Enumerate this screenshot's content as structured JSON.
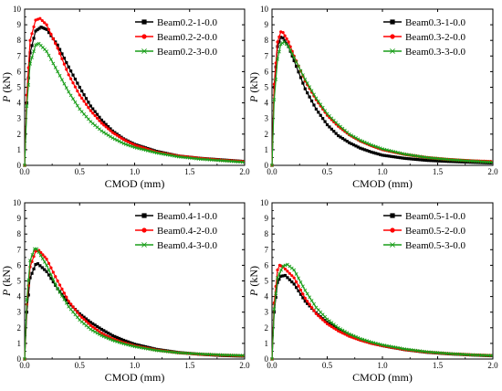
{
  "colors": {
    "black": "#000000",
    "red": "#ff0000",
    "green": "#1a9e1a"
  },
  "chart_data": [
    {
      "type": "line",
      "xlabel": "CMOD (mm)",
      "ylabel": "P",
      "ylabel_unit": "(kN)",
      "xlim": [
        0,
        2.0
      ],
      "ylim": [
        0,
        10
      ],
      "xticks": [
        "0.0",
        "0.5",
        "1.0",
        "1.5",
        "2.0"
      ],
      "yticks": [
        "0",
        "1",
        "2",
        "3",
        "4",
        "5",
        "6",
        "7",
        "8",
        "9",
        "10"
      ],
      "grid": false,
      "legend_position": "top-right",
      "series": [
        {
          "name": "Beam0.2-1-0.0",
          "color": "#000000",
          "marker": "square",
          "x": [
            0,
            0.02,
            0.05,
            0.1,
            0.15,
            0.2,
            0.3,
            0.4,
            0.5,
            0.6,
            0.7,
            0.8,
            0.9,
            1.0,
            1.2,
            1.4,
            1.6,
            1.8,
            2.0
          ],
          "y": [
            0,
            4.0,
            7.2,
            8.6,
            8.85,
            8.7,
            7.7,
            6.3,
            5.0,
            3.8,
            2.9,
            2.2,
            1.7,
            1.35,
            0.9,
            0.6,
            0.45,
            0.35,
            0.25
          ]
        },
        {
          "name": "Beam0.2-2-0.0",
          "color": "#ff0000",
          "marker": "circle",
          "x": [
            0,
            0.02,
            0.05,
            0.1,
            0.14,
            0.2,
            0.3,
            0.4,
            0.5,
            0.6,
            0.7,
            0.8,
            0.9,
            1.0,
            1.2,
            1.4,
            1.6,
            1.8,
            2.0
          ],
          "y": [
            0,
            4.5,
            8.0,
            9.3,
            9.4,
            9.0,
            7.5,
            5.8,
            4.5,
            3.5,
            2.7,
            2.1,
            1.65,
            1.3,
            0.85,
            0.6,
            0.45,
            0.33,
            0.25
          ]
        },
        {
          "name": "Beam0.2-3-0.0",
          "color": "#1a9e1a",
          "marker": "x",
          "x": [
            0,
            0.02,
            0.05,
            0.1,
            0.13,
            0.2,
            0.3,
            0.4,
            0.5,
            0.6,
            0.7,
            0.8,
            0.9,
            1.0,
            1.2,
            1.4,
            1.6,
            1.8,
            2.0
          ],
          "y": [
            0,
            3.8,
            6.5,
            7.7,
            7.8,
            7.3,
            6.0,
            4.7,
            3.6,
            2.8,
            2.2,
            1.75,
            1.4,
            1.15,
            0.8,
            0.55,
            0.4,
            0.3,
            0.2
          ]
        }
      ]
    },
    {
      "type": "line",
      "xlabel": "CMOD (mm)",
      "ylabel": "P",
      "ylabel_unit": "(kN)",
      "xlim": [
        0,
        2.0
      ],
      "ylim": [
        0,
        10
      ],
      "xticks": [
        "0.0",
        "0.5",
        "1.0",
        "1.5",
        "2.0"
      ],
      "yticks": [
        "0",
        "1",
        "2",
        "3",
        "4",
        "5",
        "6",
        "7",
        "8",
        "9",
        "10"
      ],
      "grid": false,
      "legend_position": "top-right",
      "series": [
        {
          "name": "Beam0.3-1-0.0",
          "color": "#000000",
          "marker": "square",
          "x": [
            0,
            0.02,
            0.05,
            0.08,
            0.1,
            0.15,
            0.2,
            0.3,
            0.4,
            0.5,
            0.6,
            0.7,
            0.8,
            0.9,
            1.0,
            1.2,
            1.4,
            1.6,
            1.8,
            2.0
          ],
          "y": [
            0,
            5.0,
            7.6,
            8.2,
            8.15,
            7.6,
            6.7,
            4.9,
            3.6,
            2.6,
            1.9,
            1.45,
            1.1,
            0.85,
            0.65,
            0.45,
            0.32,
            0.25,
            0.2,
            0.15
          ]
        },
        {
          "name": "Beam0.3-2-0.0",
          "color": "#ff0000",
          "marker": "circle",
          "x": [
            0,
            0.02,
            0.05,
            0.08,
            0.1,
            0.15,
            0.2,
            0.3,
            0.4,
            0.5,
            0.6,
            0.7,
            0.8,
            0.9,
            1.0,
            1.2,
            1.4,
            1.6,
            1.8,
            2.0
          ],
          "y": [
            0,
            5.2,
            7.9,
            8.55,
            8.5,
            7.9,
            7.0,
            5.4,
            4.2,
            3.2,
            2.5,
            1.95,
            1.55,
            1.25,
            1.0,
            0.7,
            0.5,
            0.38,
            0.3,
            0.25
          ]
        },
        {
          "name": "Beam0.3-3-0.0",
          "color": "#1a9e1a",
          "marker": "x",
          "x": [
            0,
            0.02,
            0.05,
            0.08,
            0.11,
            0.15,
            0.2,
            0.3,
            0.4,
            0.5,
            0.6,
            0.7,
            0.8,
            0.9,
            1.0,
            1.2,
            1.4,
            1.6,
            1.8,
            2.0
          ],
          "y": [
            0,
            4.2,
            6.8,
            7.75,
            7.9,
            7.6,
            6.9,
            5.5,
            4.3,
            3.3,
            2.6,
            2.0,
            1.6,
            1.3,
            1.05,
            0.72,
            0.5,
            0.37,
            0.28,
            0.2
          ]
        }
      ]
    },
    {
      "type": "line",
      "xlabel": "CMOD (mm)",
      "ylabel": "P",
      "ylabel_unit": "(kN)",
      "xlim": [
        0,
        2.0
      ],
      "ylim": [
        0,
        10
      ],
      "xticks": [
        "0.0",
        "0.5",
        "1.0",
        "1.5",
        "2.0"
      ],
      "yticks": [
        "0",
        "1",
        "2",
        "3",
        "4",
        "5",
        "6",
        "7",
        "8",
        "9",
        "10"
      ],
      "grid": false,
      "legend_position": "top-right",
      "series": [
        {
          "name": "Beam0.4-1-0.0",
          "color": "#000000",
          "marker": "square",
          "x": [
            0,
            0.02,
            0.05,
            0.1,
            0.12,
            0.2,
            0.3,
            0.4,
            0.5,
            0.6,
            0.7,
            0.8,
            0.9,
            1.0,
            1.2,
            1.4,
            1.6,
            1.8,
            2.0
          ],
          "y": [
            0,
            3.0,
            5.2,
            6.05,
            6.1,
            5.6,
            4.5,
            3.6,
            2.9,
            2.35,
            1.9,
            1.5,
            1.2,
            0.95,
            0.62,
            0.42,
            0.3,
            0.22,
            0.18
          ]
        },
        {
          "name": "Beam0.4-2-0.0",
          "color": "#ff0000",
          "marker": "circle",
          "x": [
            0,
            0.02,
            0.05,
            0.1,
            0.13,
            0.2,
            0.3,
            0.4,
            0.5,
            0.6,
            0.7,
            0.8,
            0.9,
            1.0,
            1.2,
            1.4,
            1.6,
            1.8,
            2.0
          ],
          "y": [
            0,
            3.5,
            5.9,
            6.9,
            6.95,
            6.4,
            5.0,
            3.7,
            2.8,
            2.15,
            1.65,
            1.3,
            1.05,
            0.85,
            0.58,
            0.4,
            0.3,
            0.24,
            0.2
          ]
        },
        {
          "name": "Beam0.4-3-0.0",
          "color": "#1a9e1a",
          "marker": "x",
          "x": [
            0,
            0.02,
            0.05,
            0.09,
            0.11,
            0.2,
            0.3,
            0.4,
            0.5,
            0.6,
            0.7,
            0.8,
            0.9,
            1.0,
            1.2,
            1.4,
            1.6,
            1.8,
            2.0
          ],
          "y": [
            0,
            3.8,
            6.3,
            7.05,
            7.05,
            6.0,
            4.5,
            3.35,
            2.5,
            1.9,
            1.5,
            1.2,
            0.98,
            0.8,
            0.55,
            0.4,
            0.32,
            0.26,
            0.22
          ]
        }
      ]
    },
    {
      "type": "line",
      "xlabel": "CMOD (mm)",
      "ylabel": "P",
      "ylabel_unit": "(kN)",
      "xlim": [
        0,
        2.0
      ],
      "ylim": [
        0,
        10
      ],
      "xticks": [
        "0.0",
        "0.5",
        "1.0",
        "1.5",
        "2.0"
      ],
      "yticks": [
        "0",
        "1",
        "2",
        "3",
        "4",
        "5",
        "6",
        "7",
        "8",
        "9",
        "10"
      ],
      "grid": false,
      "legend_position": "top-right",
      "series": [
        {
          "name": "Beam0.5-1-0.0",
          "color": "#000000",
          "marker": "square",
          "x": [
            0,
            0.02,
            0.05,
            0.08,
            0.12,
            0.2,
            0.3,
            0.4,
            0.5,
            0.6,
            0.7,
            0.8,
            0.9,
            1.0,
            1.2,
            1.4,
            1.6,
            1.8,
            2.0
          ],
          "y": [
            0,
            3.0,
            4.9,
            5.3,
            5.35,
            4.8,
            3.7,
            2.95,
            2.35,
            1.9,
            1.55,
            1.25,
            1.02,
            0.85,
            0.6,
            0.43,
            0.33,
            0.26,
            0.2
          ]
        },
        {
          "name": "Beam0.5-2-0.0",
          "color": "#ff0000",
          "marker": "circle",
          "x": [
            0,
            0.02,
            0.05,
            0.07,
            0.1,
            0.2,
            0.3,
            0.4,
            0.5,
            0.6,
            0.7,
            0.8,
            0.9,
            1.0,
            1.2,
            1.4,
            1.6,
            1.8,
            2.0
          ],
          "y": [
            0,
            3.6,
            5.7,
            6.0,
            5.9,
            5.2,
            3.9,
            2.9,
            2.25,
            1.8,
            1.45,
            1.2,
            1.0,
            0.85,
            0.6,
            0.44,
            0.34,
            0.27,
            0.22
          ]
        },
        {
          "name": "Beam0.5-3-0.0",
          "color": "#1a9e1a",
          "marker": "x",
          "x": [
            0,
            0.02,
            0.05,
            0.1,
            0.14,
            0.2,
            0.3,
            0.4,
            0.5,
            0.6,
            0.7,
            0.8,
            0.9,
            1.0,
            1.2,
            1.4,
            1.6,
            1.8,
            2.0
          ],
          "y": [
            0,
            3.2,
            5.2,
            5.95,
            6.05,
            5.7,
            4.4,
            3.3,
            2.55,
            2.0,
            1.6,
            1.3,
            1.08,
            0.9,
            0.64,
            0.46,
            0.35,
            0.27,
            0.22
          ]
        }
      ]
    }
  ]
}
